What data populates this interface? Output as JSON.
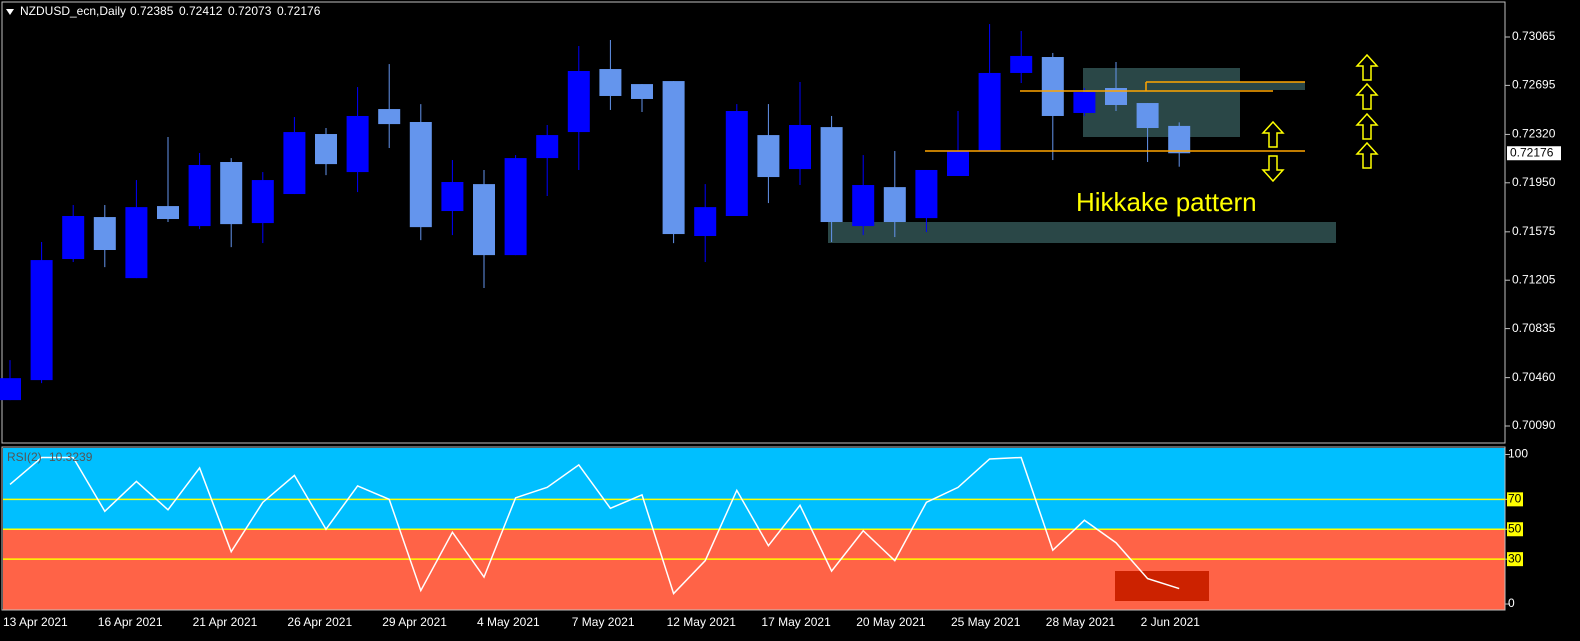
{
  "chart_data": [
    {
      "type": "candlestick",
      "title": "NZDUSD_ecn,Daily",
      "categories": [
        "13 Apr 2021",
        null,
        null,
        "16 Apr 2021",
        null,
        null,
        "21 Apr 2021",
        null,
        null,
        "26 Apr 2021",
        null,
        null,
        "29 Apr 2021",
        null,
        null,
        "4 May 2021",
        null,
        null,
        "7 May 2021",
        null,
        null,
        "12 May 2021",
        null,
        null,
        "17 May 2021",
        null,
        null,
        "20 May 2021",
        null,
        null,
        "25 May 2021",
        null,
        null,
        "28 May 2021",
        null,
        null,
        "2 Jun 2021",
        null
      ],
      "open": [
        0.70288,
        0.70441,
        0.71367,
        0.71688,
        0.71221,
        0.71772,
        0.71619,
        0.72109,
        0.71642,
        0.71864,
        0.72323,
        0.72032,
        0.72514,
        0.72415,
        0.71734,
        0.7194,
        0.71397,
        0.72139,
        0.72338,
        0.7282,
        0.72705,
        0.72728,
        0.71543,
        0.71696,
        0.72315,
        0.72055,
        0.72376,
        0.71619,
        0.71917,
        0.7168,
        0.72002,
        0.72193,
        0.7279,
        0.72912,
        0.72484,
        0.72675,
        0.7256,
        0.72385
      ],
      "high": [
        0.70594,
        0.71497,
        0.7178,
        0.7178,
        0.71971,
        0.723,
        0.72178,
        0.72139,
        0.72032,
        0.72453,
        0.72369,
        0.72682,
        0.72858,
        0.72552,
        0.72124,
        0.72048,
        0.72162,
        0.72392,
        0.72996,
        0.73042,
        0.72705,
        0.72728,
        0.7194,
        0.72552,
        0.72552,
        0.72721,
        0.72461,
        0.72162,
        0.72193,
        0.72048,
        0.72499,
        0.73164,
        0.73111,
        0.72943,
        0.72675,
        0.72874,
        0.7256,
        0.72412
      ],
      "low": [
        0.70288,
        0.70418,
        0.71344,
        0.71305,
        0.71221,
        0.7165,
        0.71596,
        0.71458,
        0.71489,
        0.71864,
        0.72009,
        0.71879,
        0.72216,
        0.71512,
        0.7155,
        0.71145,
        0.71397,
        0.71849,
        0.72048,
        0.72507,
        0.72491,
        0.71489,
        0.71344,
        0.71696,
        0.71795,
        0.71933,
        0.71497,
        0.7155,
        0.71535,
        0.71573,
        0.72002,
        0.72193,
        0.72713,
        0.72124,
        0.72461,
        0.72499,
        0.72109,
        0.72073
      ],
      "close": [
        0.70456,
        0.71359,
        0.71696,
        0.71436,
        0.71764,
        0.71673,
        0.72086,
        0.71634,
        0.71971,
        0.72338,
        0.72093,
        0.72461,
        0.72399,
        0.71611,
        0.71956,
        0.71397,
        0.72139,
        0.72315,
        0.72805,
        0.72614,
        0.72591,
        0.71558,
        0.71764,
        0.72499,
        0.71994,
        0.72392,
        0.7165,
        0.71933,
        0.7165,
        0.72048,
        0.72193,
        0.7279,
        0.7292,
        0.72461,
        0.72644,
        0.72545,
        0.72369,
        0.72176
      ],
      "up_color": "#0000ff",
      "down_color": "#6495ed",
      "ylim": [
        0.6996,
        0.73348
      ],
      "yticks": [
        0.73065,
        {
          "value": 0.72695,
          "label": "0.72695"
        },
        {
          "value": 0.7232,
          "label": "0.72320"
        },
        {
          "value": 0.7195,
          "label": "0.71950"
        },
        0.71575,
        0.71205,
        0.70835,
        {
          "value": 0.7046,
          "label": "0.70460"
        },
        {
          "value": 0.7009,
          "label": "0.70090"
        }
      ],
      "annotation": "Hikkake pattern"
    },
    {
      "type": "line",
      "title": "RSI(2)",
      "values": [
        80,
        98,
        98,
        62,
        82,
        63,
        91,
        35,
        68,
        86,
        50,
        79,
        70,
        9,
        48,
        18,
        71,
        78,
        93,
        64,
        73,
        7,
        29,
        76,
        39,
        66,
        22,
        49,
        29,
        68,
        78,
        97,
        98,
        36,
        56,
        41,
        17,
        10.3239
      ],
      "color": "#ffffff",
      "upper_zone_color": "#00bfff",
      "lower_zone_color": "#ff6347",
      "level_color": "#ffff00",
      "ylim": [
        -4,
        105
      ],
      "yticks": [
        0,
        30,
        50,
        70,
        100
      ],
      "levels": [
        30,
        50,
        70
      ]
    }
  ]
}
